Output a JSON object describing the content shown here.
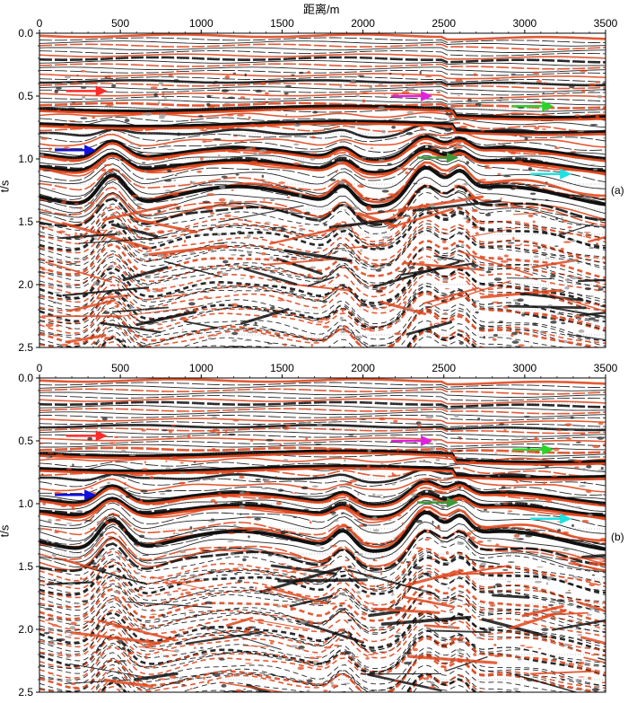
{
  "figure": {
    "x_axis_label": "距离/m",
    "y_axis_label": "t/s",
    "x_ticks": [
      "0",
      "500",
      "1000",
      "1500",
      "2000",
      "2500",
      "3000",
      "3500"
    ],
    "y_ticks": [
      "0.0",
      "0.5",
      "1.0",
      "1.5",
      "2.0",
      "2.5"
    ],
    "x_range": [
      0,
      3500
    ],
    "y_range": [
      0,
      2.5
    ],
    "panels": [
      {
        "tag": "(a)",
        "arrows": [
          {
            "color": "#ff2a2a",
            "x": 420,
            "t": 0.46
          },
          {
            "color": "#1010e0",
            "x": 350,
            "t": 0.93
          },
          {
            "color": "#e020e0",
            "x": 2430,
            "t": 0.5
          },
          {
            "color": "#28d428",
            "x": 3180,
            "t": 0.58
          },
          {
            "color": "#3a9a3a",
            "x": 2590,
            "t": 0.99
          },
          {
            "color": "#20e0e0",
            "x": 3290,
            "t": 1.12
          }
        ]
      },
      {
        "tag": "(b)",
        "arrows": [
          {
            "color": "#ff2a2a",
            "x": 420,
            "t": 0.46
          },
          {
            "color": "#1010e0",
            "x": 350,
            "t": 0.93
          },
          {
            "color": "#e020e0",
            "x": 2430,
            "t": 0.5
          },
          {
            "color": "#28d428",
            "x": 3180,
            "t": 0.57
          },
          {
            "color": "#3a9a3a",
            "x": 2590,
            "t": 0.99
          },
          {
            "color": "#20e0e0",
            "x": 3290,
            "t": 1.12
          }
        ]
      }
    ],
    "colors": {
      "reflector_red": "#e0481e",
      "reflector_black": "#111111",
      "background": "#ffffff"
    }
  }
}
